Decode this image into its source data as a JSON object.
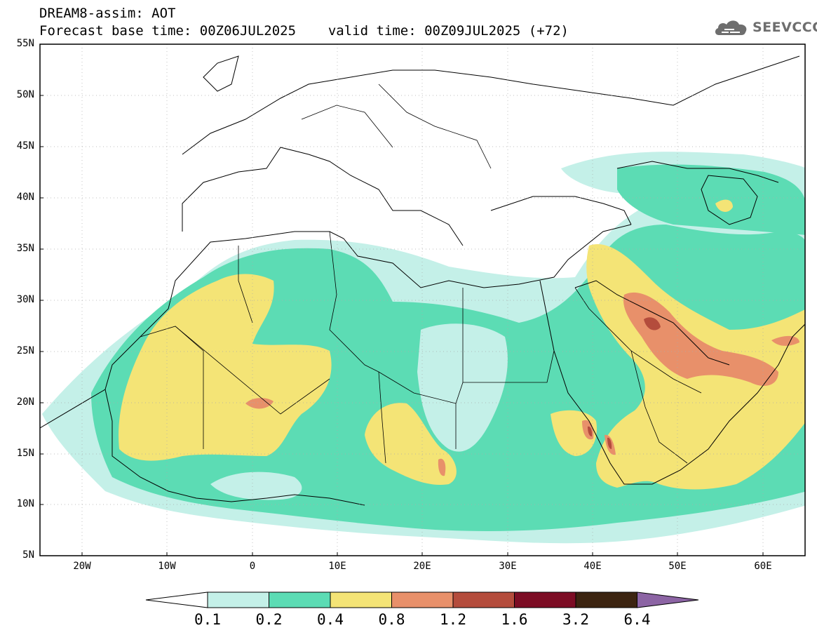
{
  "header": {
    "title_line1": "DREAM8-assim: AOT",
    "base_time": "Forecast base time: 00Z06JUL2025",
    "valid_time": "valid time: 00Z09JUL2025 (+72)"
  },
  "logo": {
    "icon": "cloud-logo-icon",
    "text": "SEEVCCC",
    "color": "#6e6e6e"
  },
  "map": {
    "extent": {
      "lon_min": -25,
      "lon_max": 65,
      "lat_min": 5,
      "lat_max": 55
    },
    "lat_labels": [
      "55N",
      "50N",
      "45N",
      "40N",
      "35N",
      "30N",
      "25N",
      "20N",
      "15N",
      "10N",
      "5N"
    ],
    "lat_values": [
      55,
      50,
      45,
      40,
      35,
      30,
      25,
      20,
      15,
      10,
      5
    ],
    "lon_labels": [
      "20W",
      "10W",
      "0",
      "10E",
      "20E",
      "30E",
      "40E",
      "50E",
      "60E"
    ],
    "lon_values": [
      -20,
      -10,
      0,
      10,
      20,
      30,
      40,
      50,
      60
    ]
  },
  "colorbar": {
    "labels": [
      "0.1",
      "0.2",
      "0.4",
      "0.8",
      "1.2",
      "1.6",
      "3.2",
      "6.4"
    ],
    "colors": [
      "#c4f0e8",
      "#5cdcb4",
      "#f4e476",
      "#e8906a",
      "#b44c3c",
      "#7c0c24",
      "#3c2410",
      "#8c64a4"
    ],
    "under_color": "#ffffff"
  }
}
